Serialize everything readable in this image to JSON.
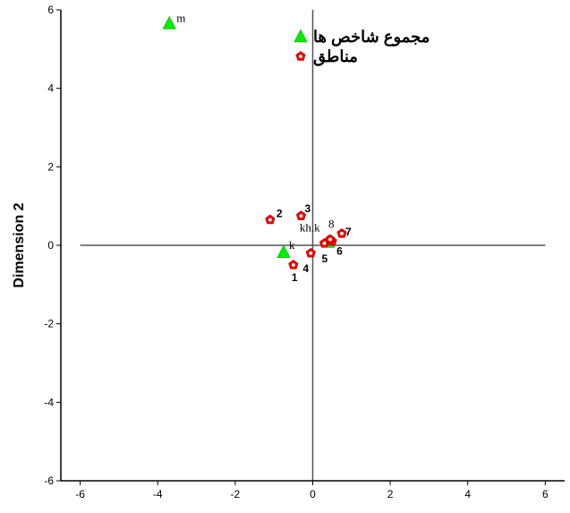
{
  "chart_data": {
    "type": "scatter",
    "title": "",
    "xlabel": "",
    "ylabel": "Dimension 2",
    "xlim": [
      -6.5,
      6.5
    ],
    "ylim": [
      -6,
      6
    ],
    "xticks": [
      -6,
      -4,
      -2,
      0,
      2,
      4,
      6
    ],
    "yticks": [
      -6,
      -4,
      -2,
      0,
      2,
      4,
      6
    ],
    "reference_lines": {
      "x": 0,
      "y": 0
    },
    "legend_position": "top-center",
    "series": [
      {
        "name": "مجموع شاخص ها",
        "marker": "triangle",
        "color": "#00ee00",
        "points": [
          {
            "label": "m",
            "x": -3.7,
            "y": 5.65
          },
          {
            "label": "k",
            "x": -0.75,
            "y": -0.18
          },
          {
            "label": "kh.k",
            "x": 0.4,
            "y": 0.08
          }
        ]
      },
      {
        "name": "مناطق",
        "marker": "pentagon",
        "color": "#ee0000",
        "points": [
          {
            "label": "1",
            "x": -0.5,
            "y": -0.5
          },
          {
            "label": "2",
            "x": -1.1,
            "y": 0.65
          },
          {
            "label": "3",
            "x": -0.3,
            "y": 0.75
          },
          {
            "label": "4",
            "x": -0.05,
            "y": -0.2
          },
          {
            "label": "5",
            "x": 0.3,
            "y": 0.05
          },
          {
            "label": "6",
            "x": 0.5,
            "y": 0.1
          },
          {
            "label": "7",
            "x": 0.75,
            "y": 0.3
          },
          {
            "label": "8",
            "x": 0.45,
            "y": 0.15
          }
        ]
      }
    ]
  }
}
